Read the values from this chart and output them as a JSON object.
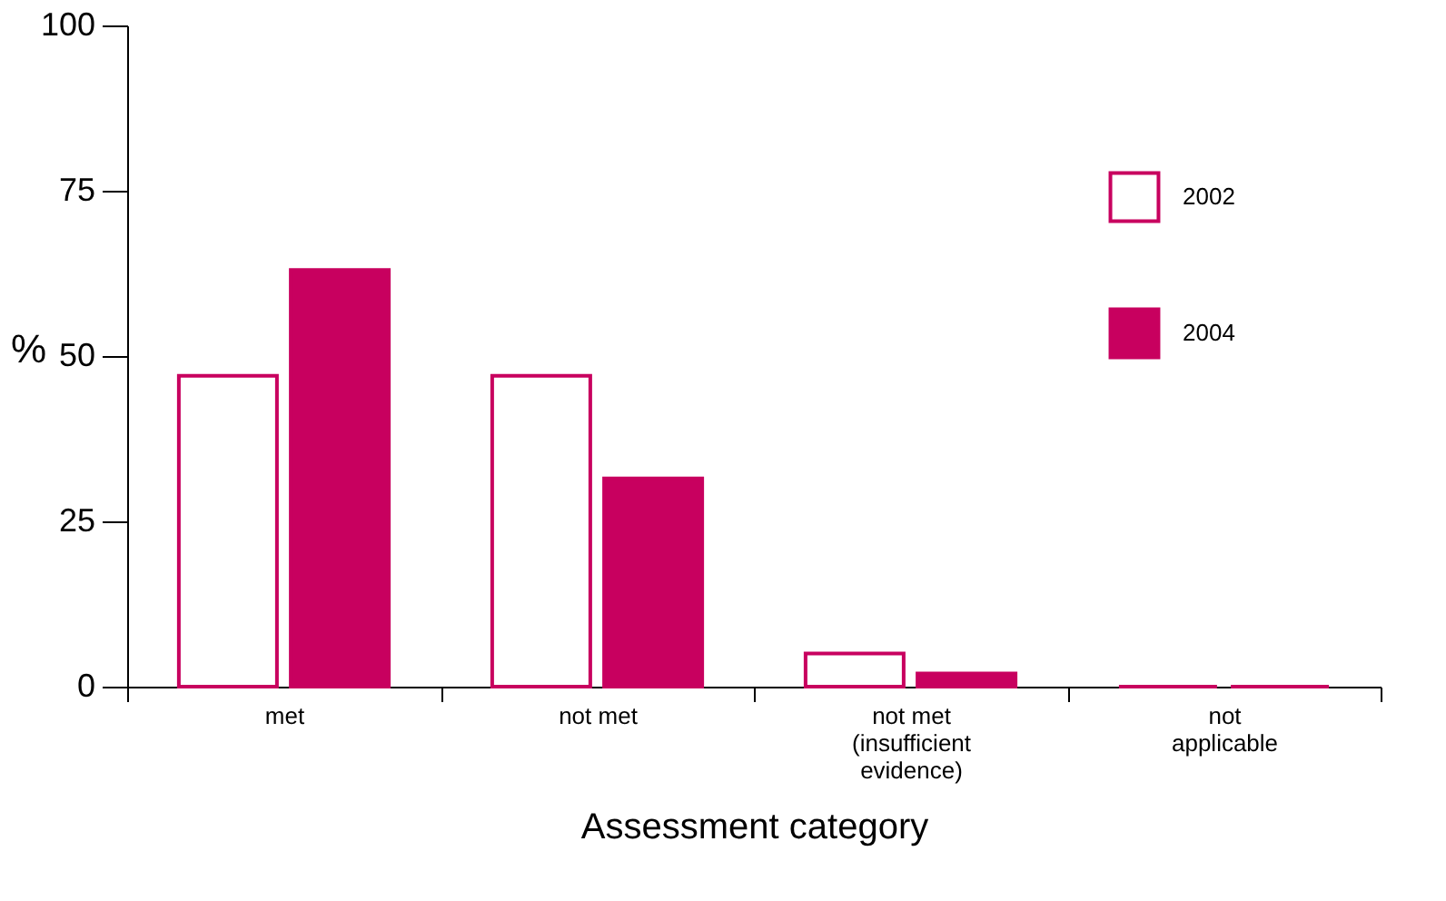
{
  "chart_data": {
    "type": "bar",
    "xlabel": "Assessment category",
    "ylabel": "%",
    "categories": [
      "met",
      "not met",
      "not met\n(insufficient\nevidence)",
      "not\napplicable"
    ],
    "series": [
      {
        "name": "2002",
        "color": "#c8005f",
        "values": [
          47,
          47,
          5,
          0
        ]
      },
      {
        "name": "2004",
        "color": "#c8005f",
        "values": [
          63,
          31.5,
          2,
          0
        ]
      }
    ],
    "ylim": [
      0,
      100
    ],
    "yticks": [
      0,
      25,
      50,
      75,
      100
    ],
    "grid": false,
    "legend": "top right"
  }
}
